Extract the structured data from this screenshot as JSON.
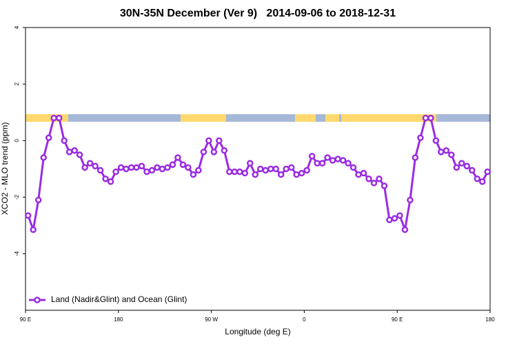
{
  "chart_data": {
    "type": "line",
    "title": "30N-35N December (Ver 9)   2014-09-06 to 2018-12-31",
    "x_label": "Longitude (deg E)",
    "y_label": "XCO2 - MLO trend (ppm)",
    "xlim": [
      90,
      540
    ],
    "xticks": [
      {
        "value": 90,
        "label": "90 E"
      },
      {
        "value": 180,
        "label": "180"
      },
      {
        "value": 270,
        "label": "90 W"
      },
      {
        "value": 360,
        "label": "0"
      },
      {
        "value": 450,
        "label": "90 E"
      },
      {
        "value": 540,
        "label": "180"
      }
    ],
    "ylim": [
      -6,
      4
    ],
    "yticks": [
      -4,
      -2,
      0,
      2,
      4
    ],
    "legend": "bottom-left",
    "x": [
      92.5,
      97.5,
      102.5,
      107.5,
      112.5,
      117.5,
      122.5,
      127.5,
      132.5,
      137.5,
      142.5,
      147.5,
      152.5,
      157.5,
      162.5,
      167.5,
      172.5,
      177.5,
      182.5,
      187.5,
      192.5,
      197.5,
      202.5,
      207.5,
      212.5,
      217.5,
      222.5,
      227.5,
      232.5,
      237.5,
      242.5,
      247.5,
      252.5,
      257.5,
      262.5,
      267.5,
      272.5,
      277.5,
      282.5,
      287.5,
      292.5,
      297.5,
      302.5,
      307.5,
      312.5,
      317.5,
      322.5,
      327.5,
      332.5,
      337.5,
      342.5,
      347.5,
      352.5,
      357.5,
      362.5,
      367.5,
      372.5,
      377.5,
      382.5,
      387.5,
      392.5,
      397.5,
      402.5,
      407.5,
      412.5,
      417.5,
      422.5,
      427.5,
      432.5,
      437.5,
      442.5,
      447.5,
      452.5,
      457.5,
      462.5,
      467.5,
      472.5,
      477.5,
      482.5,
      487.5,
      492.5,
      497.5,
      502.5,
      507.5,
      512.5,
      517.5,
      522.5,
      527.5,
      532.5,
      537.5
    ],
    "series": [
      {
        "name": "Land (Nadir&Glint) and Ocean (Glint)",
        "color": "#9a2be2",
        "values": [
          -2.65,
          -3.15,
          -2.1,
          -0.6,
          0.1,
          0.8,
          0.8,
          0,
          -0.4,
          -0.35,
          -0.5,
          -0.95,
          -0.8,
          -0.9,
          -1.05,
          -1.35,
          -1.45,
          -1.1,
          -0.95,
          -1.0,
          -0.95,
          -0.95,
          -0.9,
          -1.1,
          -1.05,
          -0.95,
          -1.0,
          -0.95,
          -0.85,
          -0.6,
          -0.85,
          -0.95,
          -1.2,
          -1.05,
          -0.4,
          0,
          -0.4,
          0,
          -0.35,
          -1.1,
          -1.1,
          -1.1,
          -1.15,
          -0.8,
          -1.2,
          -1.0,
          -1.05,
          -1.0,
          -1.0,
          -1.2,
          -1.0,
          -0.95,
          -1.2,
          -1.15,
          -1.05,
          -0.55,
          -0.8,
          -0.8,
          -0.6,
          -0.7,
          -0.65,
          -0.7,
          -0.8,
          -0.95,
          -1.2,
          -1.15,
          -1.35,
          -1.5,
          -1.35,
          -1.6,
          -2.8,
          -2.75,
          -2.65,
          -3.15,
          -2.1,
          -0.6,
          0.1,
          0.8,
          0.8,
          0,
          -0.4,
          -0.35,
          -0.5,
          -0.95,
          -0.8,
          -0.9,
          -1.05,
          -1.35,
          -1.45,
          -1.1
        ]
      }
    ]
  }
}
